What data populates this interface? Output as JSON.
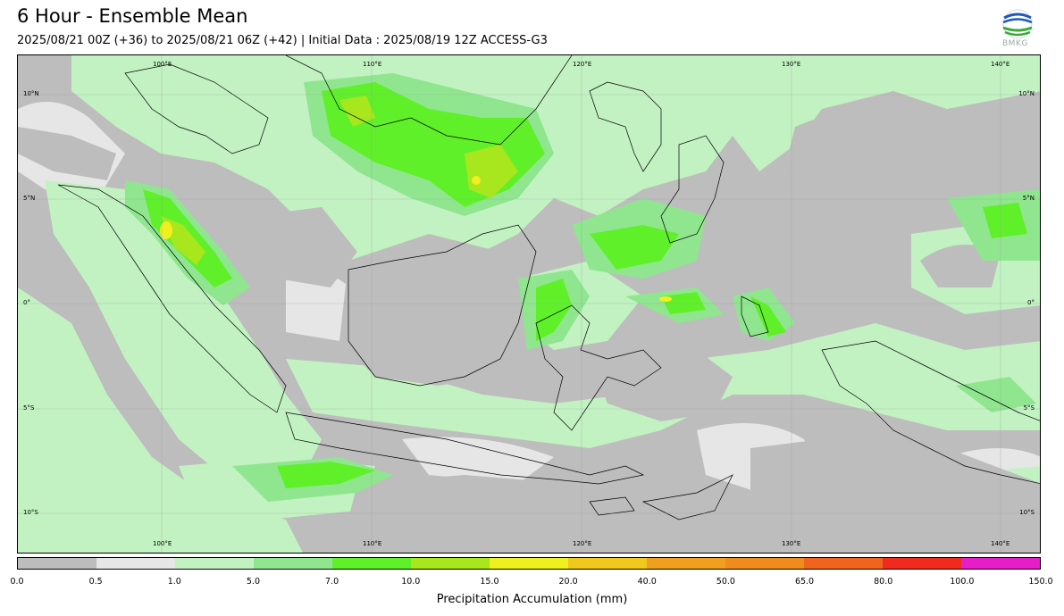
{
  "header": {
    "title": "6 Hour - Ensemble Mean",
    "subtitle": "2025/08/21 00Z (+36) to 2025/08/21 06Z (+42) | Initial Data : 2025/08/19 12Z ACCESS-G3"
  },
  "logo": {
    "text": "BMKG"
  },
  "map": {
    "lon_labels": [
      "100°E",
      "110°E",
      "120°E",
      "130°E",
      "140°E"
    ],
    "lat_labels": [
      "10°N",
      "5°N",
      "0°",
      "5°S",
      "10°S"
    ]
  },
  "colorbar": {
    "label": "Precipitation Accumulation (mm)",
    "ticks": [
      "0.0",
      "0.5",
      "1.0",
      "5.0",
      "7.0",
      "10.0",
      "15.0",
      "20.0",
      "40.0",
      "50.0",
      "65.0",
      "80.0",
      "100.0",
      "150.0"
    ],
    "colors": [
      "#bdbdbd",
      "#e6e6e6",
      "#c2f2c2",
      "#8fe68f",
      "#5ff02a",
      "#a8e61e",
      "#f0f01e",
      "#f0c81e",
      "#f0a01e",
      "#f08c1e",
      "#f0641e",
      "#f02a1e",
      "#e61ec8"
    ]
  }
}
